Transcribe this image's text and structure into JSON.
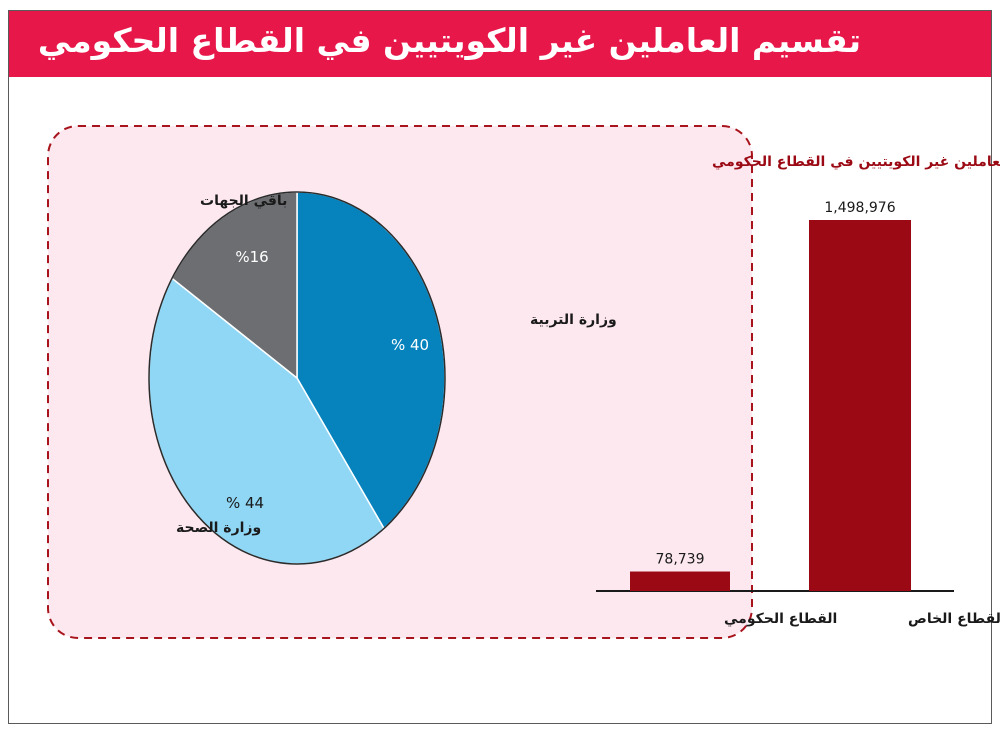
{
  "header": {
    "title": "تقسيم العاملين غير الكويتيين في القطاع الحكومي"
  },
  "colors": {
    "header_bg": "#e8174a",
    "bar": "#9b0a14",
    "panel_bg": "#fde8ef",
    "panel_border": "#a8141c",
    "pie_education": "#0683bd",
    "pie_health": "#8fd7f5",
    "pie_other": "#6c6e71"
  },
  "chart_data": [
    {
      "type": "bar",
      "categories": [
        "القطاع الحكومي",
        "القطاع الخاص"
      ],
      "values": [
        78739,
        1498976
      ],
      "value_labels": [
        "78,739",
        "1,498,976"
      ]
    },
    {
      "type": "pie",
      "title": "تقسيم العاملين غير الكويتيين في القطاع الحكومي",
      "slices": [
        {
          "label": "وزارة التربية",
          "value": 40,
          "value_label": "% 40",
          "color_key": "pie_education"
        },
        {
          "label": "وزارة الصحة",
          "value": 44,
          "value_label": "% 44",
          "color_key": "pie_health"
        },
        {
          "label": "باقي الجهات",
          "value": 16,
          "value_label": "%16",
          "color_key": "pie_other"
        }
      ]
    }
  ]
}
